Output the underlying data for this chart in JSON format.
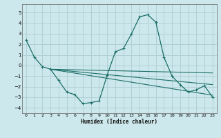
{
  "xlabel": "Humidex (Indice chaleur)",
  "bg_color": "#cde8ec",
  "grid_color": "#b0d0d6",
  "line_color": "#1a6e68",
  "xlim": [
    -0.5,
    23.5
  ],
  "ylim": [
    -4.5,
    5.8
  ],
  "yticks": [
    -4,
    -3,
    -2,
    -1,
    0,
    1,
    2,
    3,
    4,
    5
  ],
  "xticks": [
    0,
    1,
    2,
    3,
    4,
    5,
    6,
    7,
    8,
    9,
    10,
    11,
    12,
    13,
    14,
    15,
    16,
    17,
    18,
    19,
    20,
    21,
    22,
    23
  ],
  "series1_x": [
    0,
    1,
    2,
    3,
    4,
    5,
    6,
    7,
    8,
    9,
    10,
    11,
    12,
    13,
    14,
    15,
    16,
    17,
    18,
    19,
    20,
    21,
    22,
    23
  ],
  "series1_y": [
    2.4,
    0.8,
    -0.1,
    -0.35,
    -1.4,
    -2.5,
    -2.75,
    -3.6,
    -3.5,
    -3.35,
    -0.9,
    1.3,
    1.6,
    3.0,
    4.6,
    4.8,
    4.1,
    0.8,
    -1.0,
    -1.8,
    -2.5,
    -2.3,
    -1.9,
    -3.0
  ],
  "line1_x": [
    3,
    23
  ],
  "line1_y": [
    -0.35,
    -0.7
  ],
  "line2_x": [
    3,
    23
  ],
  "line2_y": [
    -0.35,
    -1.8
  ],
  "line3_x": [
    3,
    23
  ],
  "line3_y": [
    -0.35,
    -2.8
  ]
}
